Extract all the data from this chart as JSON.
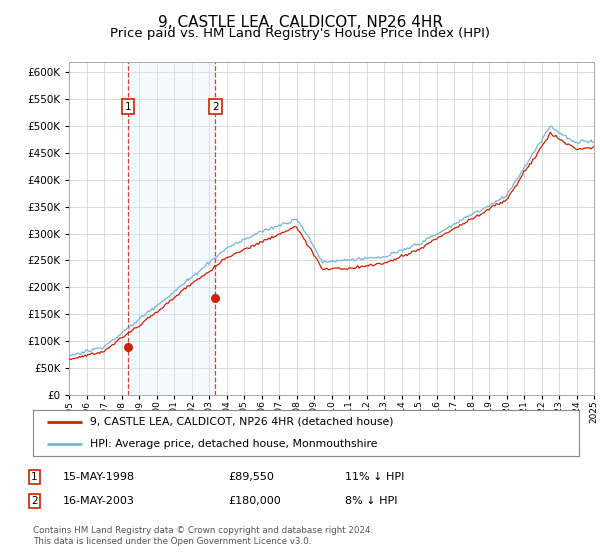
{
  "title": "9, CASTLE LEA, CALDICOT, NP26 4HR",
  "subtitle": "Price paid vs. HM Land Registry's House Price Index (HPI)",
  "ylim": [
    0,
    620000
  ],
  "ytick_values": [
    0,
    50000,
    100000,
    150000,
    200000,
    250000,
    300000,
    350000,
    400000,
    450000,
    500000,
    550000,
    600000
  ],
  "x_start_year": 1995,
  "x_end_year": 2025,
  "transaction1_date": 1998.37,
  "transaction1_price": 89550,
  "transaction2_date": 2003.37,
  "transaction2_price": 180000,
  "legend_line1": "9, CASTLE LEA, CALDICOT, NP26 4HR (detached house)",
  "legend_line2": "HPI: Average price, detached house, Monmouthshire",
  "table_row1_num": "1",
  "table_row1_date": "15-MAY-1998",
  "table_row1_price": "£89,550",
  "table_row1_hpi": "11% ↓ HPI",
  "table_row2_num": "2",
  "table_row2_date": "16-MAY-2003",
  "table_row2_price": "£180,000",
  "table_row2_hpi": "8% ↓ HPI",
  "footnote": "Contains HM Land Registry data © Crown copyright and database right 2024.\nThis data is licensed under the Open Government Licence v3.0.",
  "hpi_color": "#7ab4d8",
  "price_color": "#cc2200",
  "shade_color": "#ddeeff",
  "marker_color": "#cc2200",
  "box_color": "#cc2200",
  "title_fontsize": 11,
  "subtitle_fontsize": 9.5
}
